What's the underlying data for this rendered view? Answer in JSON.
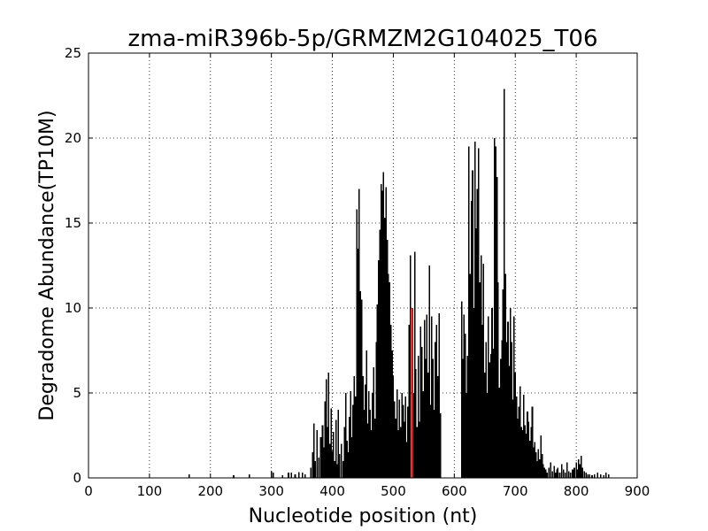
{
  "chart_data": {
    "type": "bar",
    "title": "zma-miR396b-5p/GRMZM2G104025_T06",
    "xlabel": "Nucleotide position (nt)",
    "ylabel": "Degradome Abundance(TP10M)",
    "xlim": [
      0,
      900
    ],
    "ylim": [
      0,
      25
    ],
    "xticks": [
      0,
      100,
      200,
      300,
      400,
      500,
      600,
      700,
      800,
      900
    ],
    "yticks": [
      0,
      5,
      10,
      15,
      20,
      25
    ],
    "grid": true,
    "bar_color": "#000000",
    "highlight_color": "#ff0000",
    "highlight": {
      "x": 531,
      "y": 10.0
    },
    "points": [
      [
        165,
        0.2
      ],
      [
        238,
        0.15
      ],
      [
        264,
        0.2
      ],
      [
        300,
        0.4
      ],
      [
        303,
        0.3
      ],
      [
        318,
        0.15
      ],
      [
        328,
        0.3
      ],
      [
        333,
        0.3
      ],
      [
        339,
        0.2
      ],
      [
        345,
        0.35
      ],
      [
        351,
        0.3
      ],
      [
        355,
        0.2
      ],
      [
        365,
        0.6
      ],
      [
        368,
        1.5
      ],
      [
        370,
        3.2
      ],
      [
        372,
        1.0
      ],
      [
        375,
        2.8
      ],
      [
        378,
        1.2
      ],
      [
        381,
        2.4
      ],
      [
        384,
        3.1
      ],
      [
        386,
        1.8
      ],
      [
        388,
        4.5
      ],
      [
        390,
        5.8
      ],
      [
        392,
        3.0
      ],
      [
        394,
        6.2
      ],
      [
        396,
        2.0
      ],
      [
        398,
        4.1
      ],
      [
        400,
        1.6
      ],
      [
        402,
        2.7
      ],
      [
        404,
        1.0
      ],
      [
        406,
        3.4
      ],
      [
        408,
        0.8
      ],
      [
        410,
        4.0
      ],
      [
        412,
        1.4
      ],
      [
        415,
        2.0
      ],
      [
        418,
        1.0
      ],
      [
        420,
        3.0
      ],
      [
        422,
        5.0
      ],
      [
        424,
        2.2
      ],
      [
        426,
        1.5
      ],
      [
        428,
        3.6
      ],
      [
        430,
        5.1
      ],
      [
        432,
        2.4
      ],
      [
        434,
        4.3
      ],
      [
        436,
        6.0
      ],
      [
        438,
        4.8
      ],
      [
        440,
        15.8
      ],
      [
        442,
        13.5
      ],
      [
        444,
        17.0
      ],
      [
        446,
        11.0
      ],
      [
        448,
        10.5
      ],
      [
        450,
        6.0
      ],
      [
        452,
        4.0
      ],
      [
        454,
        5.5
      ],
      [
        456,
        7.5
      ],
      [
        458,
        3.2
      ],
      [
        460,
        5.1
      ],
      [
        462,
        4.0
      ],
      [
        464,
        2.8
      ],
      [
        466,
        5.0
      ],
      [
        468,
        6.5
      ],
      [
        470,
        3.5
      ],
      [
        472,
        8.0
      ],
      [
        474,
        10.2
      ],
      [
        476,
        12.8
      ],
      [
        478,
        14.6
      ],
      [
        480,
        17.3
      ],
      [
        482,
        16.9
      ],
      [
        484,
        18.0
      ],
      [
        486,
        15.3
      ],
      [
        488,
        17.1
      ],
      [
        490,
        14.0
      ],
      [
        492,
        12.0
      ],
      [
        494,
        11.5
      ],
      [
        496,
        9.0
      ],
      [
        498,
        7.5
      ],
      [
        500,
        6.0
      ],
      [
        502,
        4.5
      ],
      [
        504,
        3.5
      ],
      [
        506,
        5.2
      ],
      [
        508,
        2.8
      ],
      [
        510,
        4.6
      ],
      [
        512,
        3.0
      ],
      [
        514,
        5.0
      ],
      [
        516,
        4.3
      ],
      [
        518,
        3.3
      ],
      [
        520,
        4.8
      ],
      [
        522,
        2.1
      ],
      [
        524,
        4.2
      ],
      [
        526,
        9.0
      ],
      [
        528,
        13.1
      ],
      [
        533,
        5.0
      ],
      [
        535,
        13.3
      ],
      [
        537,
        6.4
      ],
      [
        539,
        3.0
      ],
      [
        541,
        7.2
      ],
      [
        543,
        3.3
      ],
      [
        545,
        8.9
      ],
      [
        547,
        7.7
      ],
      [
        549,
        5.1
      ],
      [
        551,
        9.3
      ],
      [
        553,
        7.0
      ],
      [
        555,
        9.6
      ],
      [
        557,
        6.2
      ],
      [
        559,
        12.5
      ],
      [
        561,
        4.3
      ],
      [
        563,
        9.5
      ],
      [
        565,
        7.0
      ],
      [
        567,
        4.0
      ],
      [
        569,
        8.0
      ],
      [
        571,
        9.0
      ],
      [
        573,
        6.0
      ],
      [
        575,
        9.7
      ],
      [
        577,
        3.8
      ],
      [
        612,
        10.4
      ],
      [
        614,
        7.0
      ],
      [
        616,
        9.6
      ],
      [
        618,
        8.5
      ],
      [
        620,
        5.0
      ],
      [
        622,
        7.2
      ],
      [
        624,
        19.5
      ],
      [
        626,
        12.0
      ],
      [
        628,
        16.3
      ],
      [
        630,
        18.1
      ],
      [
        632,
        10.0
      ],
      [
        634,
        19.8
      ],
      [
        636,
        14.7
      ],
      [
        638,
        17.0
      ],
      [
        640,
        19.4
      ],
      [
        642,
        11.5
      ],
      [
        644,
        13.1
      ],
      [
        646,
        9.0
      ],
      [
        648,
        12.6
      ],
      [
        650,
        6.2
      ],
      [
        652,
        8.0
      ],
      [
        654,
        5.0
      ],
      [
        656,
        9.5
      ],
      [
        658,
        6.8
      ],
      [
        660,
        7.3
      ],
      [
        662,
        10.0
      ],
      [
        664,
        7.6
      ],
      [
        666,
        20.0
      ],
      [
        668,
        19.5
      ],
      [
        670,
        17.7
      ],
      [
        672,
        11.5
      ],
      [
        674,
        5.3
      ],
      [
        676,
        7.0
      ],
      [
        678,
        8.1
      ],
      [
        680,
        11.1
      ],
      [
        682,
        22.9
      ],
      [
        684,
        12.0
      ],
      [
        686,
        8.0
      ],
      [
        688,
        9.2
      ],
      [
        690,
        6.6
      ],
      [
        692,
        10.0
      ],
      [
        694,
        8.0
      ],
      [
        696,
        4.6
      ],
      [
        698,
        9.5
      ],
      [
        700,
        6.2
      ],
      [
        702,
        4.8
      ],
      [
        704,
        3.5
      ],
      [
        706,
        4.2
      ],
      [
        708,
        5.4
      ],
      [
        710,
        3.0
      ],
      [
        712,
        2.8
      ],
      [
        714,
        4.9
      ],
      [
        716,
        3.1
      ],
      [
        718,
        2.6
      ],
      [
        720,
        3.9
      ],
      [
        722,
        3.3
      ],
      [
        724,
        2.2
      ],
      [
        726,
        3.0
      ],
      [
        728,
        4.2
      ],
      [
        730,
        1.8
      ],
      [
        732,
        2.1
      ],
      [
        734,
        1.5
      ],
      [
        736,
        1.0
      ],
      [
        738,
        1.7
      ],
      [
        740,
        1.1
      ],
      [
        742,
        2.5
      ],
      [
        744,
        1.4
      ],
      [
        746,
        0.8
      ],
      [
        748,
        0.6
      ],
      [
        750,
        0.5
      ],
      [
        752,
        0.3
      ],
      [
        755,
        0.6
      ],
      [
        758,
        0.9
      ],
      [
        761,
        0.4
      ],
      [
        764,
        0.7
      ],
      [
        766,
        0.3
      ],
      [
        768,
        0.5
      ],
      [
        770,
        0.6
      ],
      [
        773,
        0.3
      ],
      [
        776,
        0.8
      ],
      [
        779,
        0.5
      ],
      [
        782,
        0.3
      ],
      [
        785,
        0.9
      ],
      [
        788,
        0.4
      ],
      [
        791,
        0.3
      ],
      [
        794,
        0.5
      ],
      [
        797,
        0.6
      ],
      [
        800,
        0.9
      ],
      [
        802,
        0.5
      ],
      [
        804,
        1.1
      ],
      [
        806,
        0.8
      ],
      [
        808,
        1.3
      ],
      [
        810,
        0.6
      ],
      [
        813,
        0.4
      ],
      [
        816,
        0.3
      ],
      [
        819,
        0.2
      ],
      [
        822,
        0.2
      ],
      [
        826,
        0.15
      ],
      [
        830,
        0.2
      ],
      [
        835,
        0.3
      ],
      [
        840,
        0.2
      ],
      [
        845,
        0.15
      ],
      [
        849,
        0.3
      ],
      [
        853,
        0.2
      ]
    ]
  }
}
